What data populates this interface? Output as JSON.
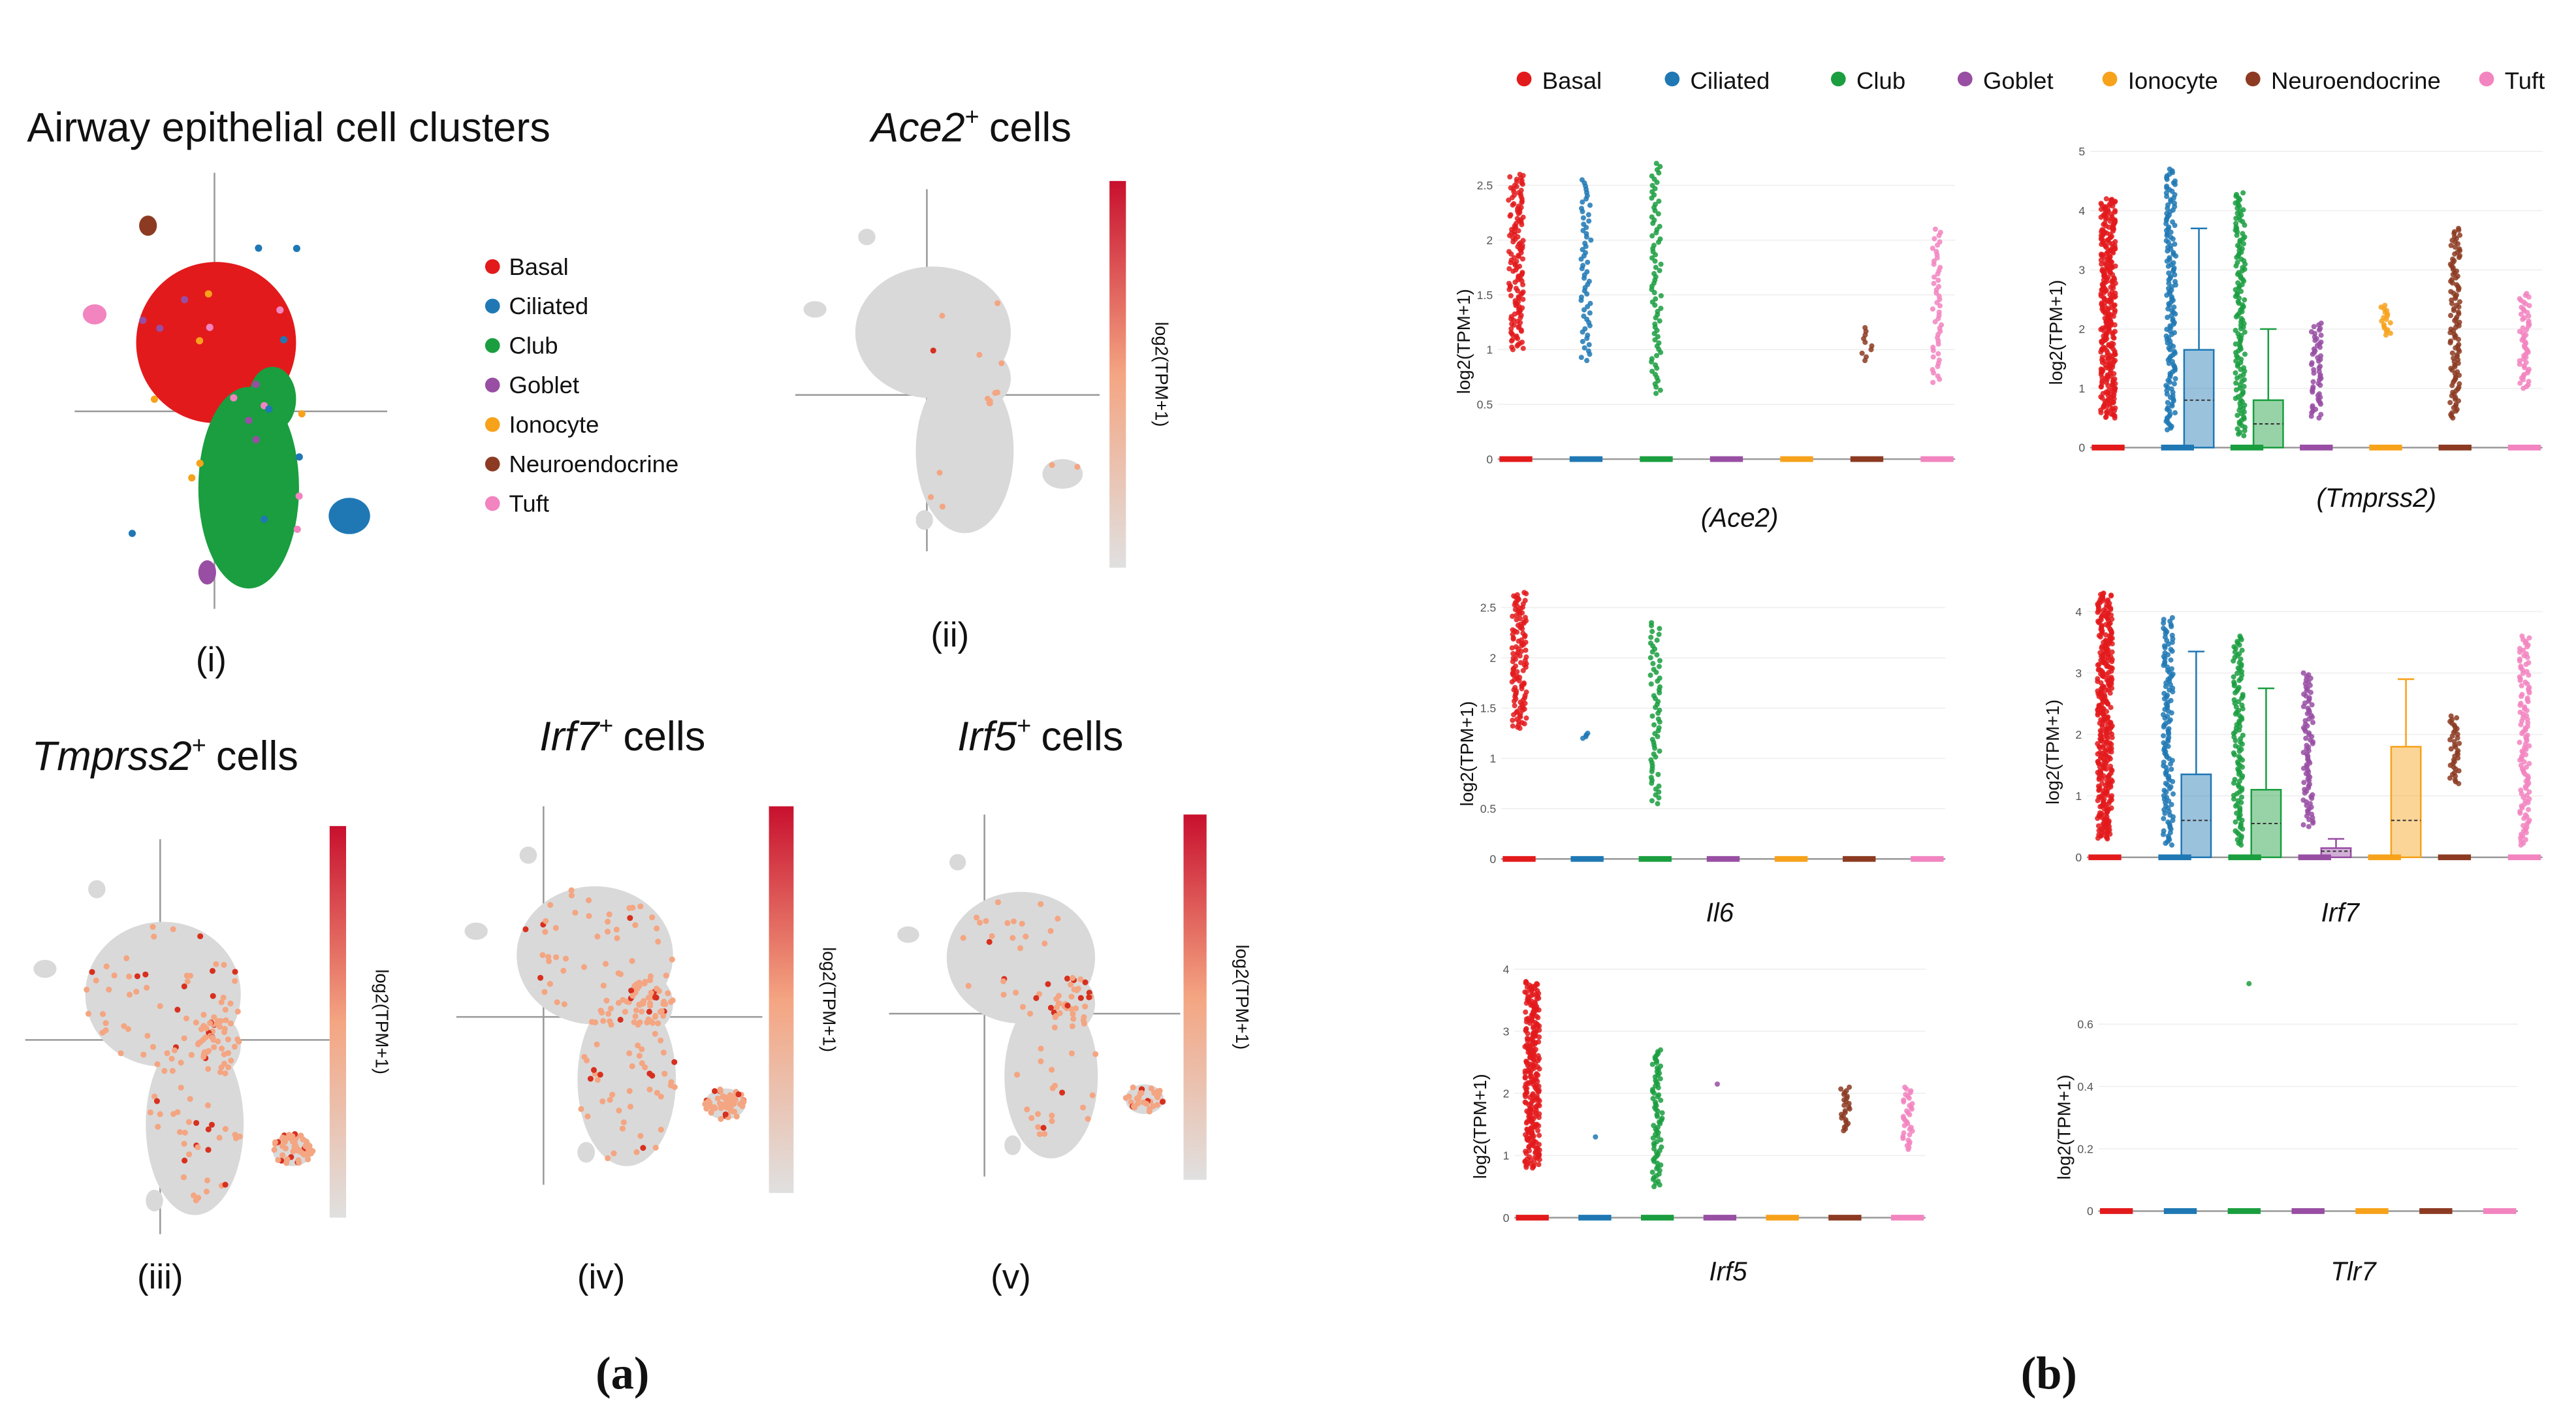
{
  "legend": [
    {
      "name": "Basal",
      "color": "#e31a1c"
    },
    {
      "name": "Ciliated",
      "color": "#1f78b4"
    },
    {
      "name": "Club",
      "color": "#1a9e3f"
    },
    {
      "name": "Goblet",
      "color": "#984ea3"
    },
    {
      "name": "Ionocyte",
      "color": "#f7a21b"
    },
    {
      "name": "Neuroendocrine",
      "color": "#8c3b22"
    },
    {
      "name": "Tuft",
      "color": "#f284c0"
    }
  ],
  "panel_a": {
    "label": "(a)",
    "cluster_plot": {
      "title": "Airway epithelial cell clusters",
      "label": "(i)"
    },
    "expression_plots": [
      {
        "gene": "Ace2",
        "sup": "+",
        "suffix": "cells",
        "label": "(ii)",
        "colorbar_label": "log2(TPM+1)"
      },
      {
        "gene": "Tmprss2",
        "sup": "+",
        "suffix": "cells",
        "label": "(iii)",
        "colorbar_label": "log2(TPM+1)"
      },
      {
        "gene": "Irf7",
        "sup": "+",
        "suffix": "cells",
        "label": "(iv)",
        "colorbar_label": "log2(TPM+1)"
      },
      {
        "gene": "Irf5",
        "sup": "+",
        "suffix": "cells",
        "label": "(v)",
        "colorbar_label": "log2(TPM+1)"
      }
    ]
  },
  "panel_b": {
    "label": "(b)",
    "y_label": "log2(TPM+1)",
    "plots": [
      {
        "gene": "(Ace2)",
        "ylim": [
          0,
          2.75
        ],
        "yticks": [
          0,
          0.5,
          1,
          1.5,
          2,
          2.5
        ],
        "ranges": [
          [
            1,
            2.6
          ],
          [
            0.9,
            2.55
          ],
          [
            0.6,
            2.7
          ],
          null,
          null,
          [
            0.9,
            1.2
          ],
          [
            0.7,
            2.1
          ]
        ],
        "boxes": [
          null,
          null,
          null,
          null,
          null,
          null,
          null
        ]
      },
      {
        "gene": "(Tmprss2)",
        "ylim": [
          0,
          5
        ],
        "yticks": [
          0,
          1,
          2,
          3,
          4,
          5
        ],
        "ranges": [
          [
            0.5,
            4.2
          ],
          [
            0.3,
            4.7
          ],
          [
            0.2,
            4.3
          ],
          [
            0.5,
            2.1
          ],
          [
            1.9,
            2.4
          ],
          [
            0.5,
            3.7
          ],
          [
            1,
            2.6
          ]
        ],
        "boxes": [
          null,
          {
            "q1": 0,
            "median": 0.8,
            "q3": 1.65,
            "whisker": 3.7
          },
          {
            "q1": 0,
            "median": 0.4,
            "q3": 0.8,
            "whisker": 2
          },
          null,
          null,
          null,
          null
        ]
      },
      {
        "gene": "Il6",
        "ylim": [
          0,
          2.75
        ],
        "yticks": [
          0,
          0.5,
          1,
          1.5,
          2,
          2.5
        ],
        "ranges": [
          [
            1.3,
            2.65
          ],
          [
            1.2,
            1.25
          ],
          [
            0.55,
            2.35
          ],
          null,
          null,
          null,
          null
        ],
        "boxes": [
          null,
          null,
          null,
          null,
          null,
          null,
          null
        ]
      },
      {
        "gene": "Irf7",
        "ylim": [
          0,
          4.5
        ],
        "yticks": [
          0,
          1,
          2,
          3,
          4
        ],
        "ranges": [
          [
            0.3,
            4.3
          ],
          [
            0.2,
            3.9
          ],
          [
            0.2,
            3.6
          ],
          [
            0.5,
            3
          ],
          null,
          [
            1.2,
            2.3
          ],
          [
            0.2,
            3.6
          ]
        ],
        "boxes": [
          null,
          {
            "q1": 0,
            "median": 0.6,
            "q3": 1.35,
            "whisker": 3.35
          },
          {
            "q1": 0,
            "median": 0.55,
            "q3": 1.1,
            "whisker": 2.75
          },
          {
            "q1": 0,
            "median": 0.1,
            "q3": 0.15,
            "whisker": 0.3
          },
          {
            "q1": 0,
            "median": 0.6,
            "q3": 1.8,
            "whisker": 2.9
          },
          null,
          null
        ]
      },
      {
        "gene": "Irf5",
        "ylim": [
          0,
          4
        ],
        "yticks": [
          0,
          1,
          2,
          3,
          4
        ],
        "ranges": [
          [
            0.8,
            3.8
          ],
          [
            1.3,
            1.3
          ],
          [
            0.5,
            2.7
          ],
          [
            2.15,
            2.15
          ],
          null,
          [
            1.4,
            2.1
          ],
          [
            1.1,
            2.1
          ]
        ],
        "boxes": [
          null,
          null,
          null,
          null,
          null,
          null,
          null
        ]
      },
      {
        "gene": "Tlr7",
        "ylim": [
          0,
          0.75
        ],
        "yticks": [
          0,
          0.2,
          0.4,
          0.6
        ],
        "ranges": [
          null,
          null,
          [
            0.73,
            0.73
          ],
          null,
          null,
          null,
          null
        ],
        "boxes": [
          null,
          null,
          null,
          null,
          null,
          null,
          null
        ]
      }
    ]
  }
}
